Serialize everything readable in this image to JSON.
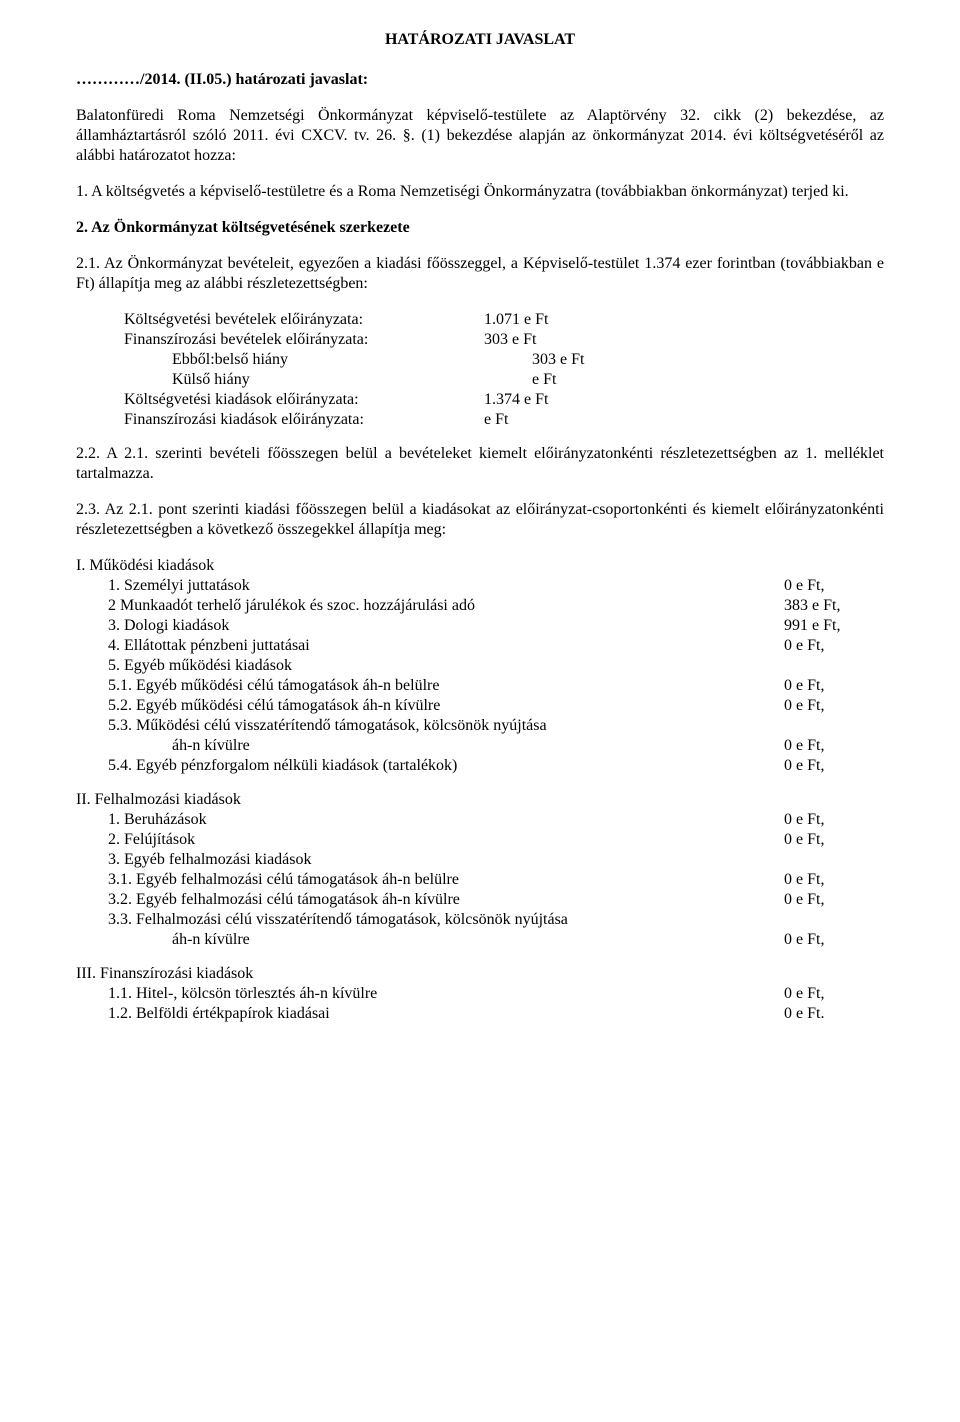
{
  "title": "HATÁROZATI JAVASLAT",
  "header_line": "…………/2014. (II.05.) határozati javaslat:",
  "intro": "Balatonfüredi Roma Nemzetségi Önkormányzat képviselő-testülete az Alaptörvény 32. cikk (2) bekezdése, az államháztartásról szóló 2011. évi CXCV. tv. 26. §. (1) bekezdése alapján az önkormányzat 2014. évi költségvetéséről az alábbi határozatot hozza:",
  "para_1": "1. A költségvetés a képviselő-testületre és a Roma Nemzetiségi Önkormányzatra (továbbiakban önkormányzat) terjed ki.",
  "para_2_heading": "2. Az Önkormányzat költségvetésének szerkezete",
  "para_2_1": "2.1. Az Önkormányzat bevételeit, egyezően a kiadási főösszeggel, a Képviselő-testület 1.374 ezer forintban (továbbiakban e Ft) állapítja meg az alábbi részletezettségben:",
  "budget_rows": [
    {
      "label": "Költségvetési bevételek előirányzata:",
      "value": "1.071 e Ft",
      "indent": 0
    },
    {
      "label": "Finanszírozási bevételek előirányzata:",
      "value": "303 e Ft",
      "indent": 0
    },
    {
      "label": "Ebből:belső hiány",
      "value": "303 e Ft",
      "indent": 1
    },
    {
      "label": "Külső hiány",
      "value": "e Ft",
      "indent": 1
    },
    {
      "label": "Költségvetési kiadások előirányzata:",
      "value": "1.374 e Ft",
      "indent": 0
    },
    {
      "label": "Finanszírozási kiadások előirányzata:",
      "value": "e Ft",
      "indent": 0
    }
  ],
  "para_2_2": "2.2.  A  2.1.  szerinti  bevételi  főösszegen  belül  a  bevételeket  kiemelt  előirányzatonkénti részletezettségben az 1. melléklet tartalmazza.",
  "para_2_3": "2.3. Az 2.1. pont szerinti kiadási főösszegen belül a kiadásokat az előirányzat-csoportonkénti és kiemelt előirányzatonkénti részletezettségben a következő összegekkel állapítja meg:",
  "section_I": {
    "heading": "I. Működési kiadások",
    "rows": [
      {
        "lbl": "1. Személyi juttatások",
        "val": "0 e Ft,",
        "indent": 1
      },
      {
        "lbl": "2 Munkaadót terhelő járulékok és szoc. hozzájárulási adó",
        "val": "383 e Ft,",
        "indent": 1
      },
      {
        "lbl": "3. Dologi kiadások",
        "val": "991 e Ft,",
        "indent": 1
      },
      {
        "lbl": "4. Ellátottak pénzbeni juttatásai",
        "val": "0 e Ft,",
        "indent": 1
      },
      {
        "lbl": "5. Egyéb működési kiadások",
        "val": "",
        "indent": 1
      },
      {
        "lbl": "5.1. Egyéb működési célú támogatások áh-n belülre",
        "val": "0 e Ft,",
        "indent": 1
      },
      {
        "lbl": "5.2. Egyéb működési célú támogatások áh-n kívülre",
        "val": "0 e Ft,",
        "indent": 1
      },
      {
        "lbl": "5.3. Működési célú visszatérítendő támogatások, kölcsönök nyújtása",
        "val": "",
        "indent": 1
      },
      {
        "lbl": "áh-n kívülre",
        "val": "0 e Ft,",
        "indent": 2
      },
      {
        "lbl": "5.4. Egyéb pénzforgalom nélküli kiadások (tartalékok)",
        "val": "0 e Ft,",
        "indent": 1
      }
    ]
  },
  "section_II": {
    "heading": "II. Felhalmozási kiadások",
    "rows": [
      {
        "lbl": "1. Beruházások",
        "val": "0 e Ft,",
        "indent": 1
      },
      {
        "lbl": "2. Felújítások",
        "val": "0 e Ft,",
        "indent": 1
      },
      {
        "lbl": "3. Egyéb felhalmozási kiadások",
        "val": "",
        "indent": 1
      },
      {
        "lbl": "3.1. Egyéb felhalmozási célú támogatások áh-n belülre",
        "val": "0 e Ft,",
        "indent": 1
      },
      {
        "lbl": "3.2. Egyéb felhalmozási célú támogatások áh-n kívülre",
        "val": "0 e Ft,",
        "indent": 1
      },
      {
        "lbl": "3.3. Felhalmozási célú visszatérítendő támogatások, kölcsönök nyújtása",
        "val": "",
        "indent": 1
      },
      {
        "lbl": "áh-n kívülre",
        "val": "0 e Ft,",
        "indent": 2
      }
    ]
  },
  "section_III": {
    "heading": "III. Finanszírozási kiadások",
    "rows": [
      {
        "lbl": "1.1. Hitel-, kölcsön törlesztés áh-n kívülre",
        "val": "0 e Ft,",
        "indent": 1
      },
      {
        "lbl": "1.2. Belföldi értékpapírok kiadásai",
        "val": "0 e Ft.",
        "indent": 1
      }
    ]
  }
}
